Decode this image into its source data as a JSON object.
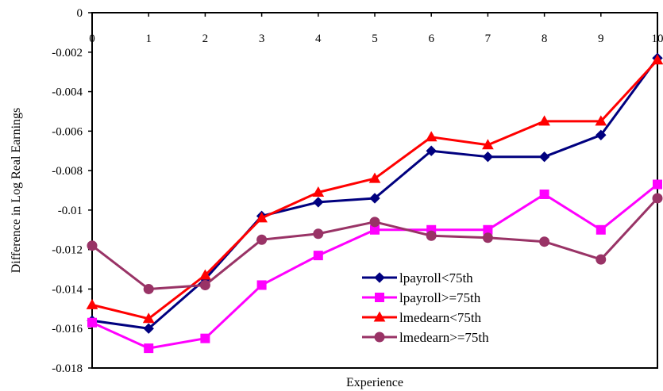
{
  "chart_data": {
    "type": "line",
    "title": "",
    "xlabel": "Experience",
    "ylabel": "Difference in Log Real Earnings",
    "x": [
      0,
      1,
      2,
      3,
      4,
      5,
      6,
      7,
      8,
      9,
      10
    ],
    "xtick_labels": [
      "0",
      "1",
      "2",
      "3",
      "4",
      "5",
      "6",
      "7",
      "8",
      "9",
      "10"
    ],
    "ylim": [
      -0.018,
      0
    ],
    "ytick_values": [
      0,
      -0.002,
      -0.004,
      -0.006,
      -0.008,
      -0.01,
      -0.012,
      -0.014,
      -0.016,
      -0.018
    ],
    "ytick_labels": [
      "0",
      "-0.002",
      "-0.004",
      "-0.006",
      "-0.008",
      "-0.01",
      "-0.012",
      "-0.014",
      "-0.016",
      "-0.018"
    ],
    "grid": false,
    "legend_position": "bottom-right",
    "series": [
      {
        "name": "lpayroll<75th",
        "color": "#00007F",
        "marker": "diamond",
        "values": [
          -0.0156,
          -0.016,
          -0.0135,
          -0.0103,
          -0.0096,
          -0.0094,
          -0.007,
          -0.0073,
          -0.0073,
          -0.0062,
          -0.0023
        ]
      },
      {
        "name": "lpayroll>=75th",
        "color": "#FF00FF",
        "marker": "square",
        "values": [
          -0.0157,
          -0.017,
          -0.0165,
          -0.0138,
          -0.0123,
          -0.011,
          -0.011,
          -0.011,
          -0.0092,
          -0.011,
          -0.0087
        ]
      },
      {
        "name": "lmedearn<75th",
        "color": "#FF0000",
        "marker": "triangle",
        "values": [
          -0.0148,
          -0.0155,
          -0.0133,
          -0.0104,
          -0.0091,
          -0.0084,
          -0.0063,
          -0.0067,
          -0.0055,
          -0.0055,
          -0.0024
        ]
      },
      {
        "name": "lmedearn>=75th",
        "color": "#993366",
        "marker": "circle",
        "values": [
          -0.0118,
          -0.014,
          -0.0138,
          -0.0115,
          -0.0112,
          -0.0106,
          -0.0113,
          -0.0114,
          -0.0116,
          -0.0125,
          -0.0094
        ]
      }
    ]
  }
}
